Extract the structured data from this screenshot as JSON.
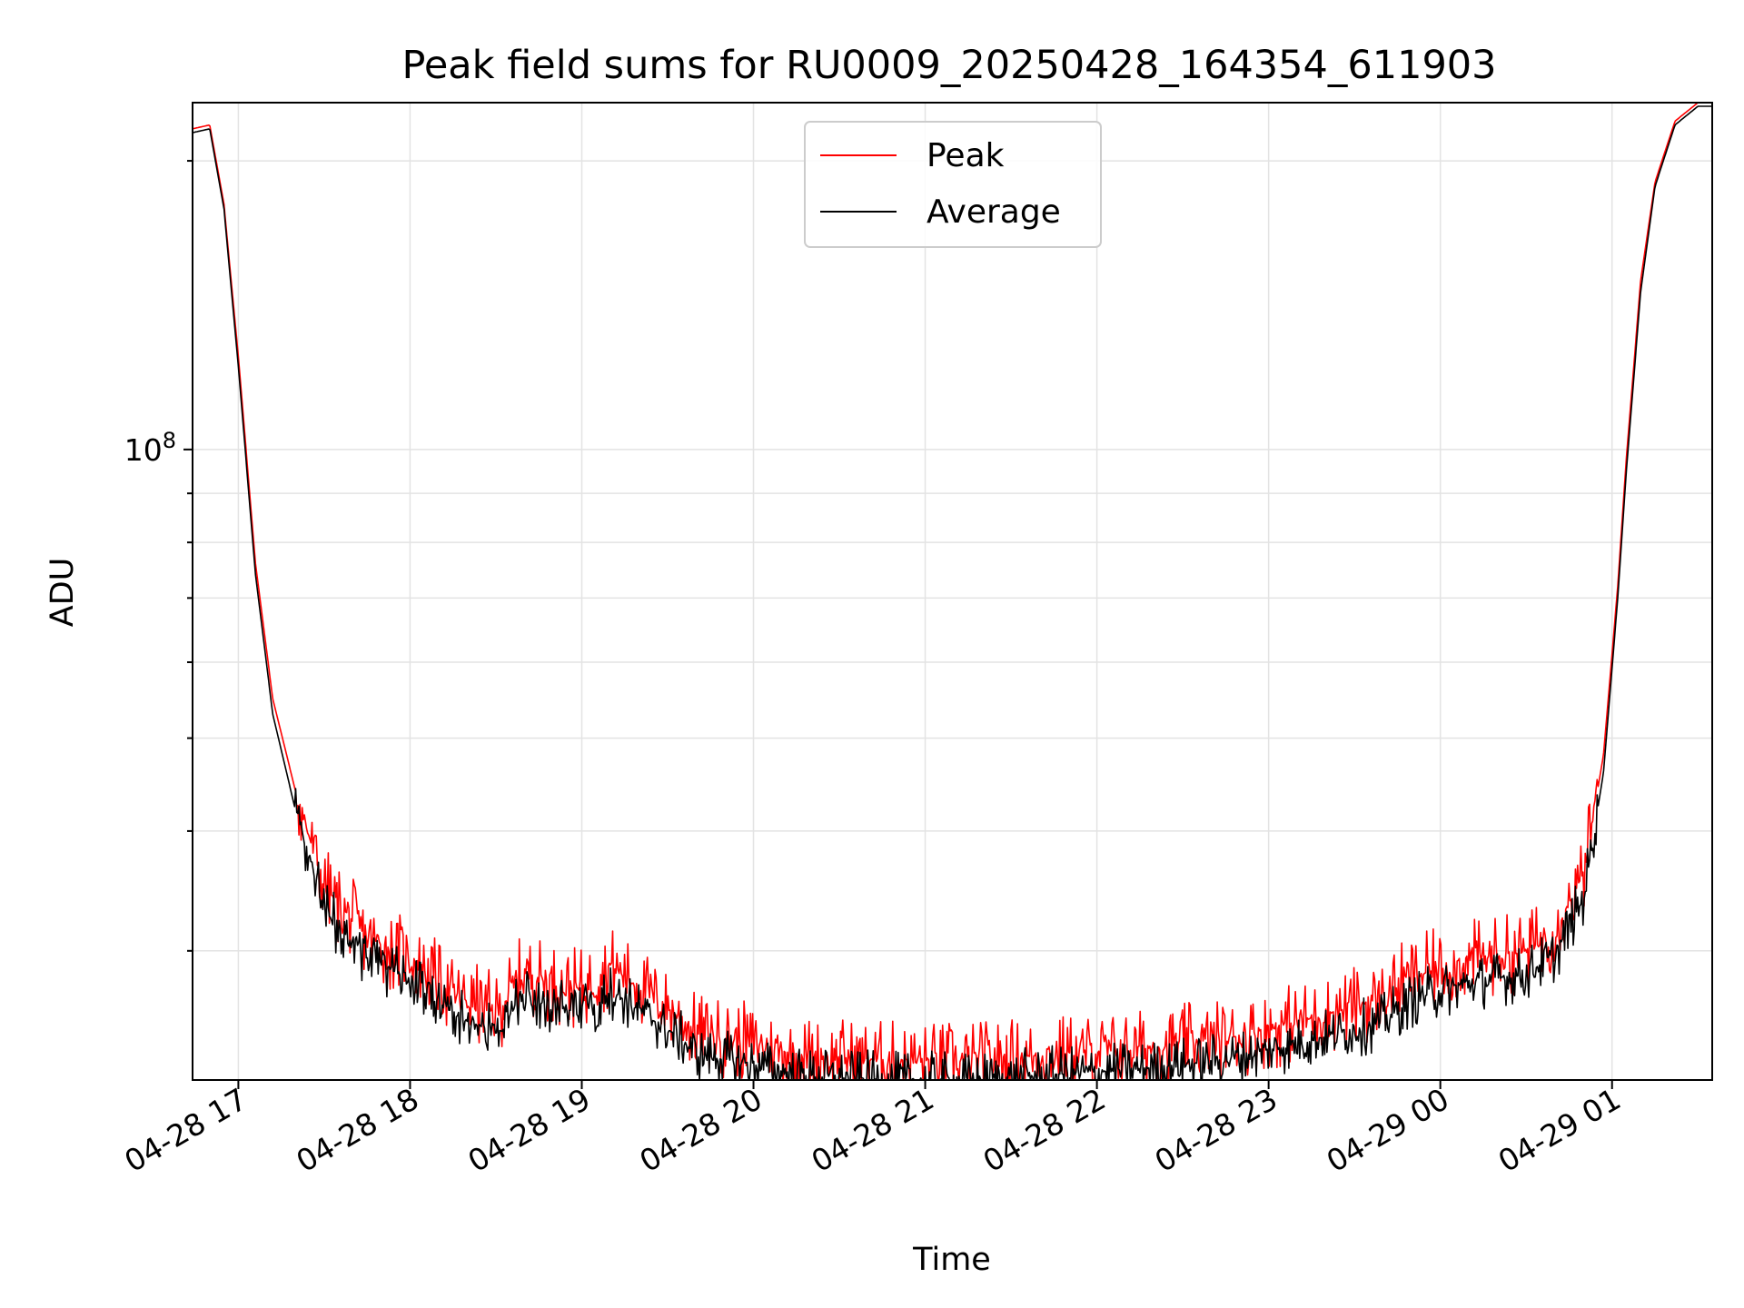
{
  "chart_data": {
    "type": "line",
    "title": "Peak field sums for RU0009_20250428_164354_611903",
    "xlabel": "Time",
    "ylabel": "ADU",
    "y_scale": "log",
    "ylim": [
      22000000,
      230000000
    ],
    "xlim": [
      "2025-04-28 16:44",
      "2025-04-29 01:35"
    ],
    "x_ticks": [
      "04-28 17",
      "04-28 18",
      "04-28 19",
      "04-28 20",
      "04-28 21",
      "04-28 22",
      "04-28 23",
      "04-29 00",
      "04-29 01"
    ],
    "y_ticks": [
      {
        "label_base": "10",
        "label_exp": "8",
        "value": 100000000
      }
    ],
    "grid": true,
    "legend": {
      "placement": "top-center",
      "entries": [
        "Peak",
        "Average"
      ]
    },
    "colors": {
      "Peak": "#ff0000",
      "Average": "#000000"
    },
    "x": [
      "2025-04-28 16:44",
      "2025-04-28 16:50",
      "2025-04-28 16:55",
      "2025-04-28 17:00",
      "2025-04-28 17:06",
      "2025-04-28 17:12",
      "2025-04-28 17:20",
      "2025-04-28 17:30",
      "2025-04-28 17:45",
      "2025-04-28 18:00",
      "2025-04-28 18:15",
      "2025-04-28 18:30",
      "2025-04-28 18:40",
      "2025-04-28 18:50",
      "2025-04-28 19:00",
      "2025-04-28 19:10",
      "2025-04-28 19:25",
      "2025-04-28 19:35",
      "2025-04-28 19:40",
      "2025-04-28 19:55",
      "2025-04-28 20:15",
      "2025-04-28 20:45",
      "2025-04-28 21:15",
      "2025-04-28 21:45",
      "2025-04-28 22:15",
      "2025-04-28 22:45",
      "2025-04-28 23:15",
      "2025-04-28 23:40",
      "2025-04-28 23:50",
      "2025-04-29 00:10",
      "2025-04-29 00:30",
      "2025-04-29 00:40",
      "2025-04-29 00:50",
      "2025-04-29 00:57",
      "2025-04-29 01:02",
      "2025-04-29 01:05",
      "2025-04-29 01:10",
      "2025-04-29 01:15",
      "2025-04-29 01:22",
      "2025-04-29 01:30",
      "2025-04-29 01:35"
    ],
    "series": [
      {
        "name": "Peak",
        "values": [
          216000000,
          218000000,
          180000000,
          125000000,
          76000000,
          55000000,
          44000000,
          35000000,
          31000000,
          29500000,
          27000000,
          25800000,
          28500000,
          27800000,
          27300000,
          29000000,
          26800000,
          25500000,
          24600000,
          24200000,
          23400000,
          23100000,
          23000000,
          23400000,
          23700000,
          24300000,
          25500000,
          26800000,
          28200000,
          29300000,
          30000000,
          31500000,
          36000000,
          48000000,
          72000000,
          98000000,
          150000000,
          190000000,
          220000000,
          230000000,
          230000000
        ],
        "jitter": 0.1
      },
      {
        "name": "Average",
        "values": [
          214000000,
          216000000,
          178000000,
          122000000,
          74000000,
          53000000,
          42000000,
          33000000,
          29500000,
          28000000,
          25800000,
          24600000,
          27000000,
          26300000,
          25800000,
          27300000,
          25400000,
          24200000,
          23400000,
          23000000,
          22300000,
          22000000,
          22000000,
          22300000,
          22600000,
          23100000,
          24200000,
          25300000,
          26700000,
          27800000,
          28400000,
          29700000,
          34000000,
          46000000,
          70000000,
          95000000,
          146000000,
          188000000,
          218000000,
          228000000,
          228000000
        ],
        "jitter": 0.07
      }
    ]
  }
}
